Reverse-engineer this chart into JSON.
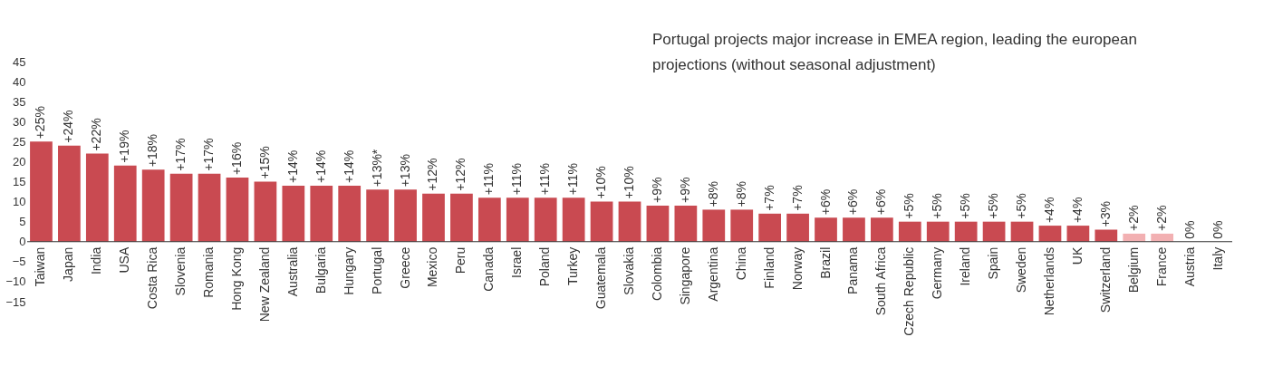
{
  "chart_data": {
    "type": "bar",
    "annotations": [
      "Portugal projects major increase in EMEA region, leading the european projections (without seasonal adjustment)"
    ],
    "categories": [
      "Taiwan",
      "Japan",
      "India",
      "USA",
      "Costa Rica",
      "Slovenia",
      "Romania",
      "Hong Kong",
      "New Zealand",
      "Australia",
      "Bulgaria",
      "Hungary",
      "Portugal",
      "Greece",
      "Mexico",
      "Peru",
      "Canada",
      "Israel",
      "Poland",
      "Turkey",
      "Guatemala",
      "Slovakia",
      "Colombia",
      "Singapore",
      "Argentina",
      "China",
      "Finland",
      "Norway",
      "Brazil",
      "Panama",
      "South Africa",
      "Czech Republic",
      "Germany",
      "Ireland",
      "Spain",
      "Sweden",
      "Netherlands",
      "UK",
      "Switzerland",
      "Belgium",
      "France",
      "Austria",
      "Italy"
    ],
    "values": [
      25,
      24,
      22,
      19,
      18,
      17,
      17,
      16,
      15,
      14,
      14,
      14,
      13,
      13,
      12,
      12,
      11,
      11,
      11,
      11,
      10,
      10,
      9,
      9,
      8,
      8,
      7,
      7,
      6,
      6,
      6,
      5,
      5,
      5,
      5,
      5,
      4,
      4,
      3,
      2,
      2,
      0,
      0
    ],
    "value_labels": [
      "+25%",
      "+24%",
      "+22%",
      "+19%",
      "+18%",
      "+17%",
      "+17%",
      "+16%",
      "+15%",
      "+14%",
      "+14%",
      "+14%",
      "+13%*",
      "+13%",
      "+12%",
      "+12%",
      "+11%",
      "+11%",
      "+11%",
      "+11%",
      "+10%",
      "+10%",
      "+9%",
      "+9%",
      "+8%",
      "+8%",
      "+7%",
      "+7%",
      "+6%",
      "+6%",
      "+6%",
      "+5%",
      "+5%",
      "+5%",
      "+5%",
      "+5%",
      "+4%",
      "+4%",
      "+3%",
      "+2%",
      "+2%",
      "0%",
      "0%"
    ],
    "colors": [
      "#c94a51",
      "#c94a51",
      "#c94a51",
      "#c94a51",
      "#c94a51",
      "#c94a51",
      "#c94a51",
      "#c94a51",
      "#c94a51",
      "#c94a51",
      "#c94a51",
      "#c94a51",
      "#c94a51",
      "#c94a51",
      "#c94a51",
      "#c94a51",
      "#c94a51",
      "#c94a51",
      "#c94a51",
      "#c94a51",
      "#c94a51",
      "#c94a51",
      "#c94a51",
      "#c94a51",
      "#c94a51",
      "#c94a51",
      "#c94a51",
      "#c94a51",
      "#c94a51",
      "#c94a51",
      "#c94a51",
      "#c94a51",
      "#c94a51",
      "#c94a51",
      "#c94a51",
      "#c94a51",
      "#c94a51",
      "#c94a51",
      "#c94a51",
      "#f2b0b2",
      "#f2b0b2",
      "#c94a51",
      "#c94a51"
    ],
    "ylim": [
      -15,
      45
    ],
    "yticks": [
      -15,
      -10,
      -5,
      0,
      5,
      10,
      15,
      20,
      25,
      30,
      35,
      40,
      45
    ],
    "grid": false
  }
}
